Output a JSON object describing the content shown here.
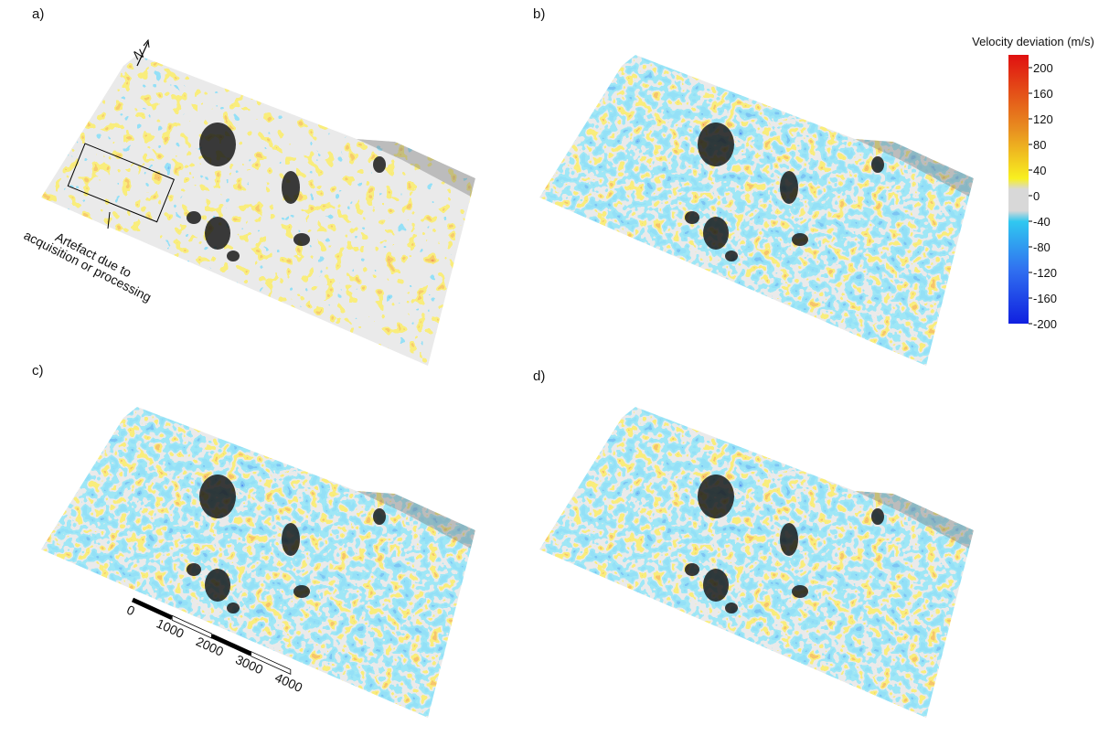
{
  "panels": {
    "labels": [
      "a)",
      "b)",
      "c)",
      "d)"
    ]
  },
  "north_arrow": "N",
  "annotation": "Artefact due to acquisition or processing",
  "colorbar": {
    "title": "Velocity deviation (m/s)",
    "ylim": [
      -200,
      220
    ],
    "yticks": [
      200,
      160,
      120,
      80,
      40,
      0,
      -40,
      -80,
      -120,
      -160,
      -200
    ]
  },
  "scale_bar": {
    "xlim": [
      0,
      4000
    ],
    "xticks": [
      0,
      1000,
      2000,
      3000,
      4000
    ]
  }
}
